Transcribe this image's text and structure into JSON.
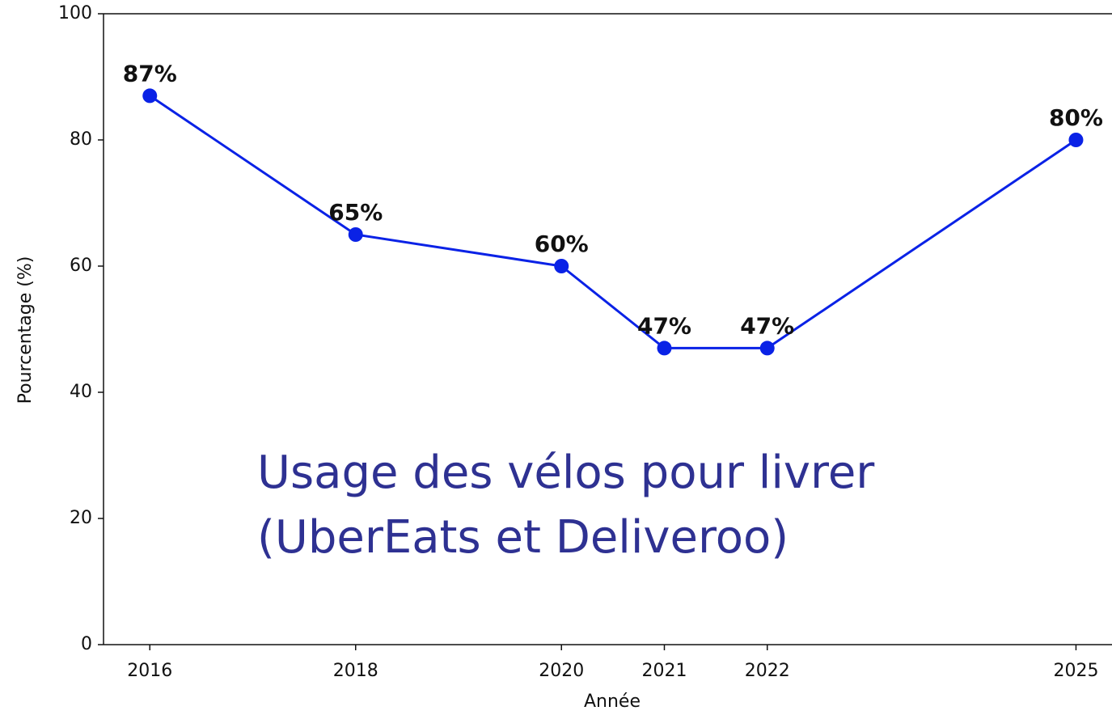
{
  "chart_data": {
    "type": "line",
    "x": [
      2016,
      2018,
      2020,
      2021,
      2022,
      2025
    ],
    "series": [
      {
        "name": "Usage des vélos",
        "color": "#0a22e6",
        "values": [
          87,
          65,
          60,
          47,
          47,
          80
        ],
        "value_labels": [
          "87%",
          "65%",
          "60%",
          "47%",
          "47%",
          "80%"
        ]
      }
    ],
    "xlim": [
      2015.55,
      2025.35
    ],
    "xticks": [
      2016,
      2018,
      2020,
      2021,
      2022,
      2025
    ],
    "ylim": [
      0,
      100
    ],
    "yticks": [
      0,
      20,
      40,
      60,
      80,
      100
    ],
    "xlabel": "Année",
    "ylabel": "Pourcentage (%)",
    "annotations": [
      "Usage des vélos pour livrer",
      "(UberEats et Deliveroo)"
    ],
    "annotation_color": "#2e3192"
  }
}
